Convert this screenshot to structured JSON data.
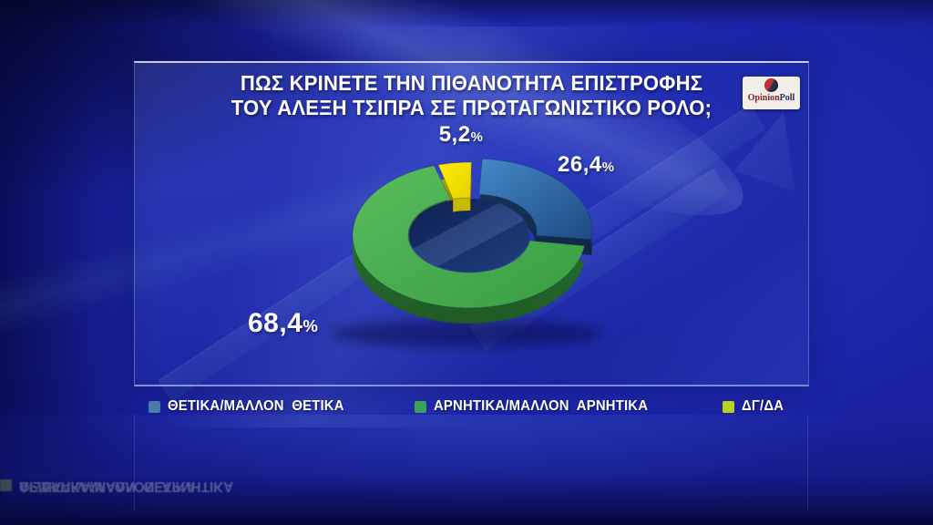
{
  "title": {
    "line1": "ΠΩΣ ΚΡΙΝΕΤΕ ΤΗΝ ΠΙΘΑΝΟΤΗΤΑ ΕΠΙΣΤΡΟΦΗΣ",
    "line2": "ΤΟΥ ΑΛΕΞΗ ΤΣΙΠΡΑ ΣΕ ΠΡΩΤΑΓΩΝΙΣΤΙΚΟ ΡΟΛΟ;"
  },
  "logo": {
    "text_primary": "Opinion",
    "text_secondary": "Poll"
  },
  "chart_data": {
    "type": "pie",
    "style": "3d-donut-exploded",
    "title": "ΠΩΣ ΚΡΙΝΕΤΕ ΤΗΝ ΠΙΘΑΝΟΤΗΤΑ ΕΠΙΣΤΡΟΦΗΣ ΤΟΥ ΑΛΕΞΗ ΤΣΙΠΡΑ ΣΕ ΠΡΩΤΑΓΩΝΙΣΤΙΚΟ ΡΟΛΟ;",
    "unit": "%",
    "legend_position": "bottom",
    "start_angle_deg": -16.5,
    "clockwise_order": [
      "ΔΓ/ΔΑ",
      "ΘΕΤΙΚΑ/ΜΑΛΛΟΝ ΘΕΤΙΚΑ",
      "ΑΡΝΗΤΙΚΑ/ΜΑΛΛΟΝ ΑΡΝΗΤΙΚΑ"
    ],
    "slices": [
      {
        "label": "ΘΕΤΙΚΑ/ΜΑΛΛΟΝ ΘΕΤΙΚΑ",
        "legend_label": "ΘΕΤΙΚΑ/ΜΑΛΛΟΝ  ΘΕΤΙΚΑ",
        "value": 26.4,
        "display": "26,4",
        "exploded": true,
        "color": "#2f6fae",
        "color_top": "#4588c6",
        "color_dark": "#1d4a84",
        "color_side": "#17375f",
        "legend_color": "#4a7aab"
      },
      {
        "label": "ΑΡΝΗΤΙΚΑ/ΜΑΛΛΟΝ ΑΡΝΗΤΙΚΑ",
        "legend_label": "ΑΡΝΗΤΙΚΑ/ΜΑΛΛΟΝ  ΑΡΝΗΤΙΚΑ",
        "value": 68.4,
        "display": "68,4",
        "exploded": false,
        "color": "#43a84b",
        "color_top": "#5abd5e",
        "color_dark": "#389d41",
        "color_side": "#2b7d33",
        "legend_color": "#3ba258"
      },
      {
        "label": "ΔΓ/ΔΑ",
        "legend_label": "ΔΓ/ΔΑ",
        "value": 5.2,
        "display": "5,2",
        "exploded": false,
        "color": "#f3e600",
        "color_top": "#ffee00",
        "color_dark": "#e4d000",
        "color_side": "#b3aa00",
        "legend_color": "#b9d21f"
      }
    ]
  },
  "colors": {
    "background": "#1c25aa",
    "hole": "#16306d",
    "label_text": "#ffffff"
  }
}
